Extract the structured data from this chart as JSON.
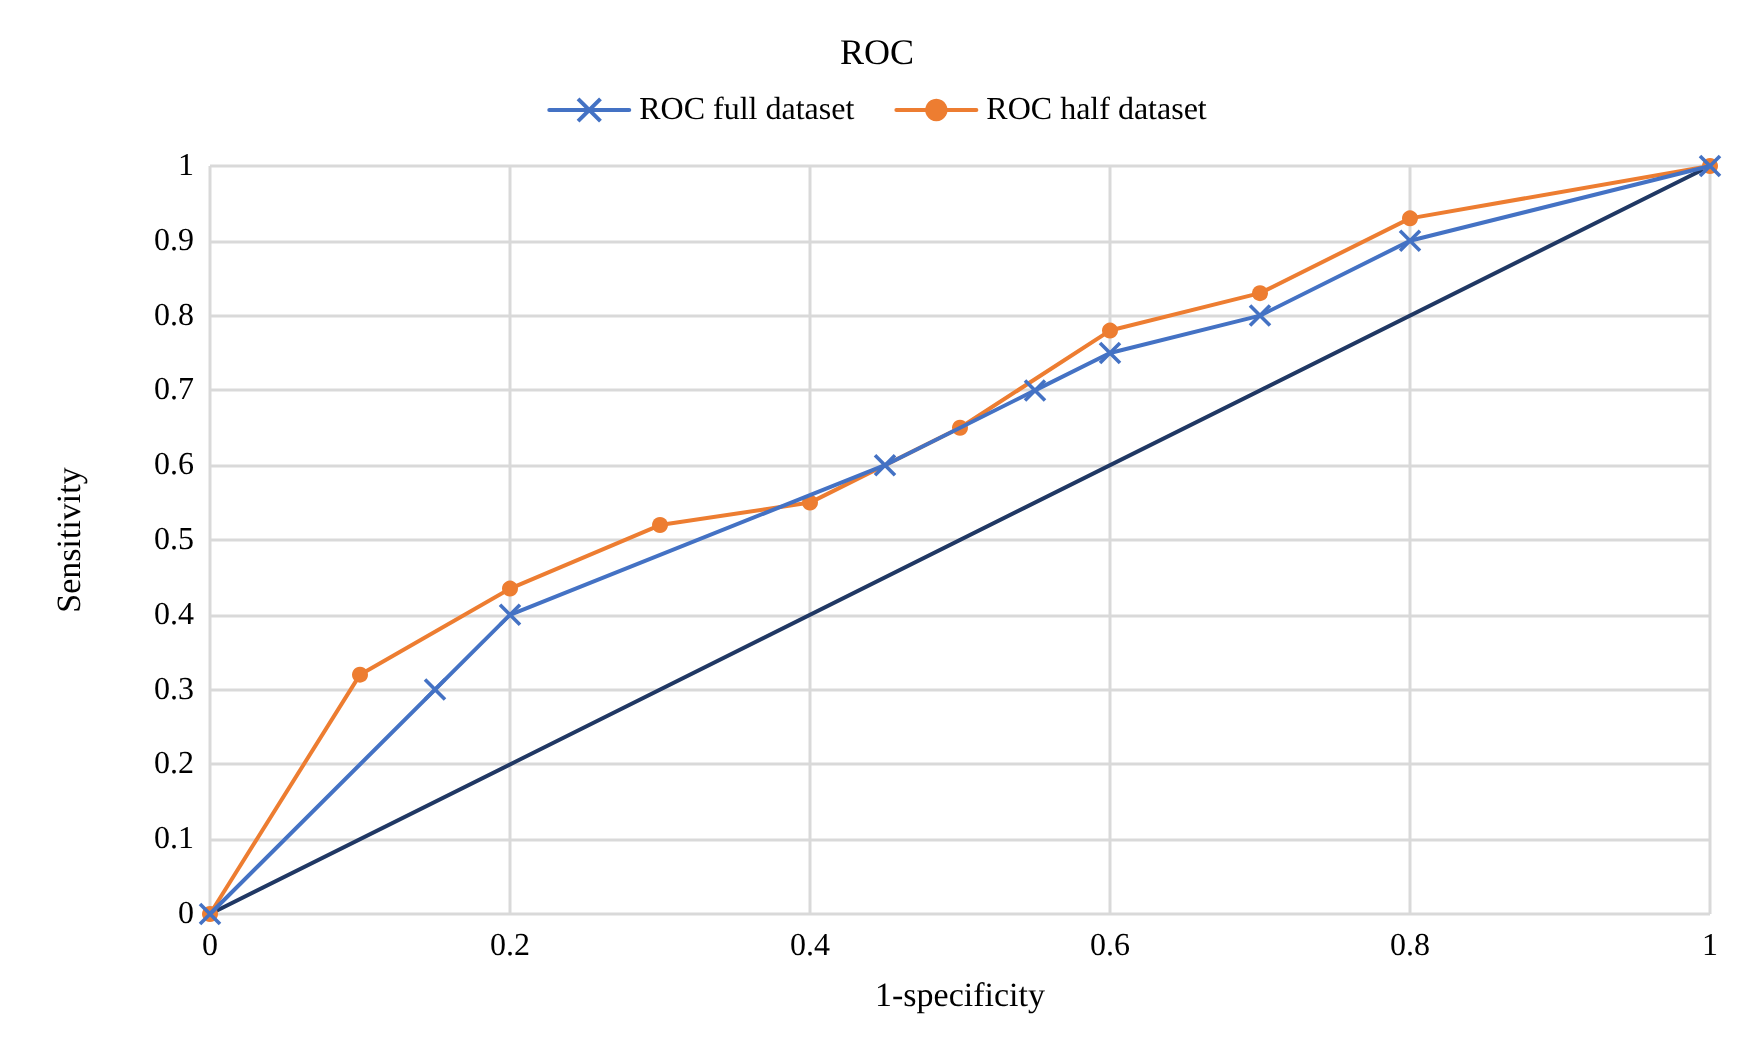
{
  "chart_data": {
    "type": "line",
    "title": "ROC",
    "xlabel": "1-specificity",
    "ylabel": "Sensitivity",
    "series": [
      {
        "name": "ROC full dataset",
        "color": "#4472c4",
        "marker": "cross",
        "x": [
          0,
          0.15,
          0.2,
          0.45,
          0.55,
          0.6,
          0.7,
          0.8,
          1
        ],
        "values": [
          0,
          0.3,
          0.4,
          0.6,
          0.7,
          0.75,
          0.8,
          0.9,
          1
        ]
      },
      {
        "name": "ROC half dataset",
        "color": "#ed7d31",
        "marker": "circle",
        "x": [
          0,
          0.1,
          0.2,
          0.3,
          0.4,
          0.5,
          0.6,
          0.7,
          0.8,
          1
        ],
        "values": [
          0,
          0.32,
          0.435,
          0.52,
          0.55,
          0.65,
          0.78,
          0.83,
          0.93,
          1
        ]
      },
      {
        "color": "#203864",
        "marker": "none",
        "x": [
          0,
          1
        ],
        "values": [
          0,
          1
        ]
      }
    ],
    "xlim": [
      0,
      1
    ],
    "xticks": [
      0,
      0.2,
      0.4,
      0.6,
      0.8,
      1
    ],
    "ylim": [
      0,
      1
    ],
    "yticks": [
      0,
      0.1,
      0.2,
      0.3,
      0.4,
      0.5,
      0.6,
      0.7,
      0.8,
      0.9,
      1
    ],
    "grid": true,
    "legend": "top"
  }
}
